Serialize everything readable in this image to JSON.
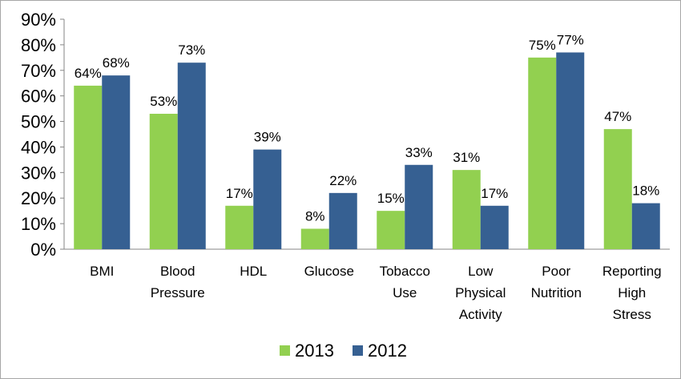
{
  "chart_data": {
    "type": "bar",
    "categories": [
      [
        "BMI"
      ],
      [
        "Blood",
        "Pressure"
      ],
      [
        "HDL"
      ],
      [
        "Glucose"
      ],
      [
        "Tobacco",
        "Use"
      ],
      [
        "Low",
        "Physical",
        "Activity"
      ],
      [
        "Poor",
        "Nutrition"
      ],
      [
        "Reporting",
        "High",
        "Stress"
      ]
    ],
    "series": [
      {
        "name": "2013",
        "color": "#92d050",
        "values": [
          64,
          53,
          17,
          8,
          15,
          31,
          75,
          47
        ],
        "labels": [
          "64%",
          "53%",
          "17%",
          "8%",
          "15%",
          "31%",
          "75%",
          "47%"
        ]
      },
      {
        "name": "2012",
        "color": "#366092",
        "values": [
          68,
          73,
          39,
          22,
          33,
          17,
          77,
          18
        ],
        "labels": [
          "68%",
          "73%",
          "39%",
          "22%",
          "33%",
          "17%",
          "77%",
          "18%"
        ]
      }
    ],
    "ylim": [
      0,
      90
    ],
    "yticks": [
      "0%",
      "10%",
      "20%",
      "30%",
      "40%",
      "50%",
      "60%",
      "70%",
      "80%",
      "90%"
    ],
    "legend_position": "bottom",
    "grid": false
  }
}
